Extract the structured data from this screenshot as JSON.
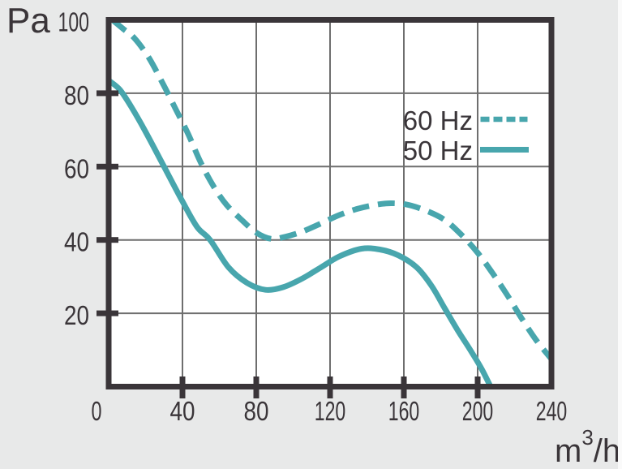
{
  "ui": {
    "background": "#e8e9e9",
    "plot_background": "#ffffff",
    "accent_teal": "#48a6ad",
    "ink_dark": "#3a3539",
    "grid_color": "#6e6e6e"
  },
  "chart_data": {
    "type": "line",
    "ylabel": "Pa",
    "xlabel": "m³/h",
    "xlabel_parts": {
      "base": "m",
      "sup": "3",
      "rest": "/h"
    },
    "xlim": [
      0,
      240
    ],
    "ylim": [
      0,
      100
    ],
    "x_ticks": [
      0,
      40,
      80,
      120,
      160,
      200,
      240
    ],
    "y_ticks": [
      20,
      40,
      60,
      80,
      100
    ],
    "grid": "on",
    "legend_position": "upper-right-inside",
    "series": [
      {
        "name": "60 Hz",
        "line_style": "dashed",
        "color": "#48a6ad",
        "points": [
          [
            2,
            100
          ],
          [
            8,
            97.5
          ],
          [
            14,
            95
          ],
          [
            22,
            89.5
          ],
          [
            30,
            82
          ],
          [
            36,
            76
          ],
          [
            43,
            69
          ],
          [
            50,
            61
          ],
          [
            57,
            54.5
          ],
          [
            64,
            49.5
          ],
          [
            72,
            45.5
          ],
          [
            80,
            42
          ],
          [
            88,
            40.3
          ],
          [
            96,
            40.9
          ],
          [
            105,
            42.3
          ],
          [
            115,
            44.5
          ],
          [
            125,
            46.8
          ],
          [
            135,
            48.5
          ],
          [
            145,
            49.6
          ],
          [
            153,
            50
          ],
          [
            162,
            49.6
          ],
          [
            172,
            48
          ],
          [
            182,
            45.5
          ],
          [
            191,
            41.5
          ],
          [
            200,
            36.5
          ],
          [
            208,
            31
          ],
          [
            216,
            25
          ],
          [
            224,
            18.5
          ],
          [
            232,
            12.5
          ],
          [
            240,
            7.5
          ]
        ]
      },
      {
        "name": "50 Hz",
        "line_style": "solid",
        "color": "#48a6ad",
        "points": [
          [
            0,
            83.5
          ],
          [
            6,
            81
          ],
          [
            12,
            76.5
          ],
          [
            20,
            69.5
          ],
          [
            30,
            60
          ],
          [
            40,
            50.5
          ],
          [
            48,
            43.5
          ],
          [
            55,
            40
          ],
          [
            65,
            32.5
          ],
          [
            75,
            28.3
          ],
          [
            85,
            26.4
          ],
          [
            95,
            27.2
          ],
          [
            105,
            29.5
          ],
          [
            115,
            32.5
          ],
          [
            125,
            35.5
          ],
          [
            137,
            37.6
          ],
          [
            147,
            37.4
          ],
          [
            157,
            35.8
          ],
          [
            167,
            32.5
          ],
          [
            175,
            27.5
          ],
          [
            182,
            21.5
          ],
          [
            189,
            15.5
          ],
          [
            196,
            10
          ],
          [
            202,
            5
          ],
          [
            207,
            0
          ]
        ]
      }
    ]
  }
}
